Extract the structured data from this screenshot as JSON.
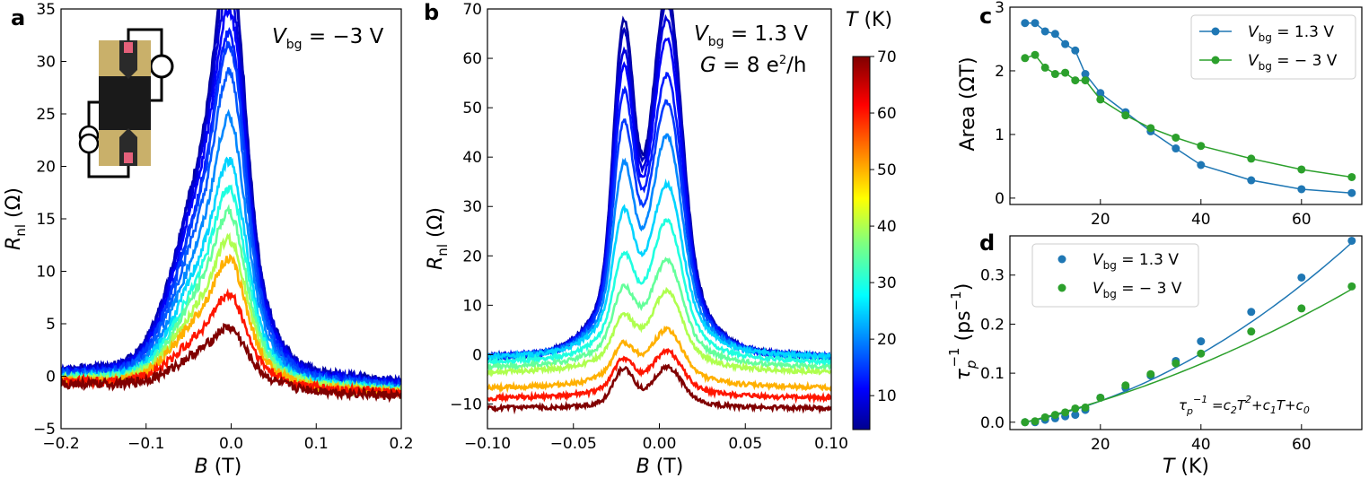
{
  "chart_data": [
    {
      "panel": "a",
      "type": "line",
      "xlabel": "B (T)",
      "ylabel": "R_nl (Ω)",
      "xlim": [
        -0.2,
        0.2
      ],
      "ylim": [
        -5,
        35
      ],
      "xticks": [
        "−0.2",
        "−0.1",
        "0.0",
        "0.1",
        "0.2"
      ],
      "yticks": [
        "−5",
        "0",
        "5",
        "10",
        "15",
        "20",
        "25",
        "30",
        "35"
      ],
      "annotation": "V_bg = −3 V",
      "inset": "device micrograph with measurement circuit",
      "colorbar": "T (K)",
      "series": [
        {
          "T": 5,
          "peak": 33.0,
          "shoulder": 21.5,
          "wing": 1.5
        },
        {
          "T": 7,
          "peak": 32.0,
          "shoulder": 21.0,
          "wing": 1.5
        },
        {
          "T": 9,
          "peak": 30.0,
          "shoulder": 20.5,
          "wing": 1.3
        },
        {
          "T": 11,
          "peak": 28.5,
          "shoulder": 19.5,
          "wing": 1.2
        },
        {
          "T": 13,
          "peak": 27.0,
          "shoulder": 18.0,
          "wing": 1.0
        },
        {
          "T": 15,
          "peak": 26.0,
          "shoulder": 17.5,
          "wing": 1.0
        },
        {
          "T": 17,
          "peak": 24.0,
          "shoulder": 16.0,
          "wing": 0.8
        },
        {
          "T": 20,
          "peak": 20.5,
          "shoulder": 14.0,
          "wing": 0.6
        },
        {
          "T": 25,
          "peak": 17.0,
          "shoulder": 12.0,
          "wing": 0.5
        },
        {
          "T": 30,
          "peak": 15.0,
          "shoulder": 10.5,
          "wing": 0.4
        },
        {
          "T": 35,
          "peak": 13.0,
          "shoulder": 9.5,
          "wing": 0.3
        },
        {
          "T": 40,
          "peak": 11.0,
          "shoulder": 8.0,
          "wing": 0.2
        },
        {
          "T": 50,
          "peak": 9.5,
          "shoulder": 7.0,
          "wing": 0.1
        },
        {
          "T": 60,
          "peak": 6.8,
          "shoulder": 5.0,
          "wing": 0.0
        },
        {
          "T": 70,
          "peak": 4.4,
          "shoulder": 3.5,
          "wing": -0.3
        }
      ]
    },
    {
      "panel": "b",
      "type": "line",
      "xlabel": "B (T)",
      "ylabel": "R_nl (Ω)",
      "xlim": [
        -0.1,
        0.1
      ],
      "ylim": [
        -15,
        70
      ],
      "xticks": [
        "−0.10",
        "−0.05",
        "0.00",
        "0.05",
        "0.10"
      ],
      "yticks": [
        "−10",
        "0",
        "10",
        "20",
        "30",
        "40",
        "50",
        "60",
        "70"
      ],
      "annotations": [
        "V_bg = 1.3 V",
        "G = 8 e²/h"
      ],
      "series": [
        {
          "T": 5,
          "peak_left": 64,
          "peak_right": 66,
          "dip": 30,
          "offset": 0
        },
        {
          "T": 7,
          "peak_left": 62,
          "peak_right": 64,
          "dip": 29,
          "offset": 0
        },
        {
          "T": 9,
          "peak_left": 58,
          "peak_right": 61,
          "dip": 28,
          "offset": 0
        },
        {
          "T": 11,
          "peak_left": 55,
          "peak_right": 57,
          "dip": 27,
          "offset": 0
        },
        {
          "T": 13,
          "peak_left": 50,
          "peak_right": 50,
          "dip": 26,
          "offset": 0
        },
        {
          "T": 15,
          "peak_left": 44,
          "peak_right": 45,
          "dip": 24,
          "offset": 0
        },
        {
          "T": 20,
          "peak_left": 36,
          "peak_right": 39,
          "dip": 20,
          "offset": 0
        },
        {
          "T": 25,
          "peak_left": 27,
          "peak_right": 30,
          "dip": 16,
          "offset": 0
        },
        {
          "T": 30,
          "peak_left": 18,
          "peak_right": 23,
          "dip": 11,
          "offset": -1
        },
        {
          "T": 35,
          "peak_left": 11,
          "peak_right": 15,
          "dip": 7,
          "offset": -2
        },
        {
          "T": 40,
          "peak_left": 5,
          "peak_right": 9,
          "dip": 3,
          "offset": -3
        },
        {
          "T": 50,
          "peak_left": -2,
          "peak_right": 0,
          "dip": -2,
          "offset": -6
        },
        {
          "T": 60,
          "peak_left": -6,
          "peak_right": -5,
          "dip": -6,
          "offset": -8
        },
        {
          "T": 70,
          "peak_left": -9,
          "peak_right": -9,
          "dip": -9.5,
          "offset": -10
        }
      ]
    },
    {
      "panel": "colorbar",
      "type": "colorbar",
      "label": "T (K)",
      "range": [
        4,
        70
      ],
      "ticks": [
        "10",
        "20",
        "30",
        "40",
        "50",
        "60",
        "70"
      ]
    },
    {
      "panel": "c",
      "type": "line",
      "xlabel": "",
      "ylabel": "Area (ΩT)",
      "xlim": [
        2,
        72
      ],
      "ylim": [
        -0.1,
        3
      ],
      "xticks": [
        "20",
        "40",
        "60"
      ],
      "yticks": [
        "0",
        "1",
        "2",
        "3"
      ],
      "legend": "top-right",
      "series": [
        {
          "name": "V_bg = 1.3 V",
          "color": "#1f77b4",
          "x": [
            5,
            7,
            9,
            11,
            13,
            15,
            17,
            20,
            25,
            30,
            35,
            40,
            50,
            60,
            70
          ],
          "y": [
            2.75,
            2.75,
            2.62,
            2.58,
            2.42,
            2.32,
            1.95,
            1.65,
            1.35,
            1.05,
            0.78,
            0.52,
            0.28,
            0.14,
            0.08
          ]
        },
        {
          "name": "V_bg = − 3 V",
          "color": "#2ca02c",
          "x": [
            5,
            7,
            9,
            11,
            13,
            15,
            17,
            20,
            25,
            30,
            35,
            40,
            50,
            60,
            70
          ],
          "y": [
            2.2,
            2.25,
            2.05,
            1.95,
            1.97,
            1.85,
            1.85,
            1.55,
            1.3,
            1.1,
            0.95,
            0.82,
            0.62,
            0.45,
            0.33
          ]
        }
      ]
    },
    {
      "panel": "d",
      "type": "scatter",
      "xlabel": "T (K)",
      "ylabel": "τ_p^−1 (ps^−1)",
      "xlim": [
        2,
        72
      ],
      "ylim": [
        -0.015,
        0.38
      ],
      "xticks": [
        "20",
        "40",
        "60"
      ],
      "yticks": [
        "0.0",
        "0.1",
        "0.2",
        "0.3"
      ],
      "legend": "top-left",
      "formula": "τ_p^−1 = c₂T² + c₁T + c₀",
      "series": [
        {
          "name": "V_bg = 1.3 V",
          "color": "#1f77b4",
          "x": [
            5,
            7,
            9,
            11,
            13,
            15,
            17,
            20,
            25,
            30,
            35,
            40,
            50,
            60,
            70
          ],
          "y": [
            0.0,
            0.0,
            0.005,
            0.008,
            0.012,
            0.015,
            0.025,
            0.05,
            0.07,
            0.095,
            0.125,
            0.165,
            0.225,
            0.295,
            0.37
          ],
          "fit": {
            "c2": 5.45e-05,
            "c1": 0.00155,
            "c0": -0.0095
          }
        },
        {
          "name": "V_bg = − 3 V",
          "color": "#2ca02c",
          "x": [
            5,
            7,
            9,
            11,
            13,
            15,
            17,
            20,
            25,
            30,
            35,
            40,
            50,
            60,
            70
          ],
          "y": [
            0.0,
            0.002,
            0.01,
            0.015,
            0.02,
            0.028,
            0.03,
            0.05,
            0.075,
            0.098,
            0.12,
            0.14,
            0.185,
            0.232,
            0.277
          ],
          "fit": {
            "c2": 2.6e-05,
            "c1": 0.00222,
            "c0": -0.0115
          }
        }
      ]
    }
  ],
  "labels": {
    "panel_a": "a",
    "panel_b": "b",
    "panel_c": "c",
    "panel_d": "d",
    "a_vbg": "V",
    "a_vbg_sub": "bg",
    "a_vbg_val": " = −3 V",
    "b_vbg": "V",
    "b_vbg_sub": "bg",
    "b_vbg_val": " = 1.3 V",
    "b_g": "G",
    "b_g_val": " = 8 e",
    "b_g_sup": "2",
    "b_g_tail": "/h",
    "cbar_T": "T",
    "cbar_unit": " (K)",
    "xlab_B": "B",
    "xlab_B_unit": " (T)",
    "ylab_R": "R",
    "ylab_R_sub": "nl",
    "ylab_R_unit": " (Ω)",
    "c_ylab": "Area (ΩT)",
    "d_xlab": "T",
    "d_xlab_unit": " (K)",
    "d_ylab_tau": "τ",
    "d_ylab_sub": "p",
    "d_ylab_sup": "−1",
    "d_ylab_unit": " (ps",
    "d_ylab_unit_sup": "−1",
    "d_ylab_close": ")",
    "leg_v": "V",
    "leg_bg": "bg",
    "leg_13": " = 1.3 V",
    "leg_m3": " = − 3 V",
    "formula_tau": "τ",
    "formula_p": "p",
    "formula_m1": "−1",
    "formula_eq": " =c",
    "formula_2": "2",
    "formula_T": "T",
    "formula_sq": "2",
    "formula_plus": "+c",
    "formula_1": "1",
    "formula_T2": "T+c",
    "formula_0": "0"
  }
}
